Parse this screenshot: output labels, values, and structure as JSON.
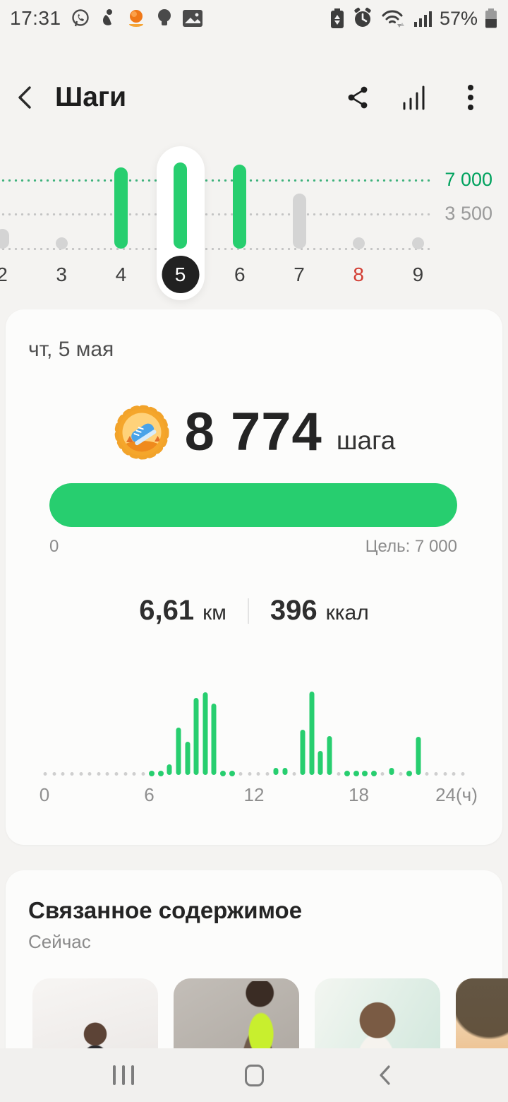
{
  "colors": {
    "accent_green": "#27ce6f",
    "goal_text_green": "#00a25e",
    "sunday_red": "#d23c32",
    "inactive_gray": "#d4d4d4",
    "selected_day_bg": "#212121",
    "page_bg": "#f4f3f1",
    "card_bg": "#fcfcfb"
  },
  "status_bar": {
    "time": "17:31",
    "battery_percent": "57%",
    "left_icons": [
      "whatsapp-icon",
      "person-icon",
      "food-app-icon",
      "bulb-icon",
      "gallery-icon"
    ],
    "right_icons": [
      "battery-saver-icon",
      "alarm-icon",
      "wifi-icon",
      "signal-icon",
      "battery-icon"
    ]
  },
  "header": {
    "title": "Шаги",
    "actions": [
      "share",
      "stats",
      "more"
    ]
  },
  "week_chart": {
    "type": "bar",
    "goal_value": 7000,
    "goal_label": "7 000",
    "mid_label": "3 500",
    "max_value": 9800,
    "days": [
      {
        "label": "2",
        "value": 2000,
        "selected": false,
        "red": false
      },
      {
        "label": "3",
        "value": 0,
        "selected": false,
        "red": false
      },
      {
        "label": "4",
        "value": 8300,
        "selected": false,
        "red": false
      },
      {
        "label": "5",
        "value": 8774,
        "selected": true,
        "red": false
      },
      {
        "label": "6",
        "value": 8570,
        "selected": false,
        "red": false
      },
      {
        "label": "7",
        "value": 5640,
        "selected": false,
        "red": false
      },
      {
        "label": "8",
        "value": 0,
        "selected": false,
        "red": true
      },
      {
        "label": "9",
        "value": 0,
        "selected": false,
        "red": false
      }
    ]
  },
  "detail_card": {
    "date": "чт, 5 мая",
    "badge": "step-goal-badge-icon",
    "steps_value": "8 774",
    "steps_unit": "шага",
    "progress": {
      "fraction": 1,
      "start_label": "0",
      "goal_label": "Цель: 7 000"
    },
    "distance_value": "6,61",
    "distance_unit": "км",
    "calories_value": "396",
    "calories_unit": "ккал",
    "hour_chart": {
      "type": "bar",
      "xlabel_unit": "часы",
      "labels": [
        {
          "text": "0",
          "hour": 0
        },
        {
          "text": "6",
          "hour": 6
        },
        {
          "text": "12",
          "hour": 12
        },
        {
          "text": "18",
          "hour": 18
        },
        {
          "text": "24(ч)",
          "hour": 24
        }
      ],
      "slot_minutes": 30,
      "values": [
        0,
        0,
        0,
        0,
        0,
        0,
        0,
        0,
        0,
        0,
        0,
        0,
        2,
        2,
        13,
        57,
        40,
        92,
        99,
        86,
        3,
        3,
        0,
        0,
        0,
        0,
        4,
        6,
        0,
        54,
        100,
        29,
        47,
        0,
        2,
        2,
        2,
        2,
        0,
        5,
        0,
        2,
        46,
        0,
        0,
        0,
        0,
        0
      ]
    }
  },
  "related": {
    "title": "Связанное содержимое",
    "subtitle": "Сейчас",
    "cards": [
      {
        "name": "workout-video-1",
        "style": "t-studio"
      },
      {
        "name": "workout-video-2",
        "style": "t-graywall"
      },
      {
        "name": "workout-video-3",
        "style": "t-window"
      },
      {
        "name": "workout-video-4",
        "style": "t-sunset"
      }
    ]
  },
  "nav_bar": {
    "buttons": [
      "recents",
      "home",
      "back"
    ]
  }
}
